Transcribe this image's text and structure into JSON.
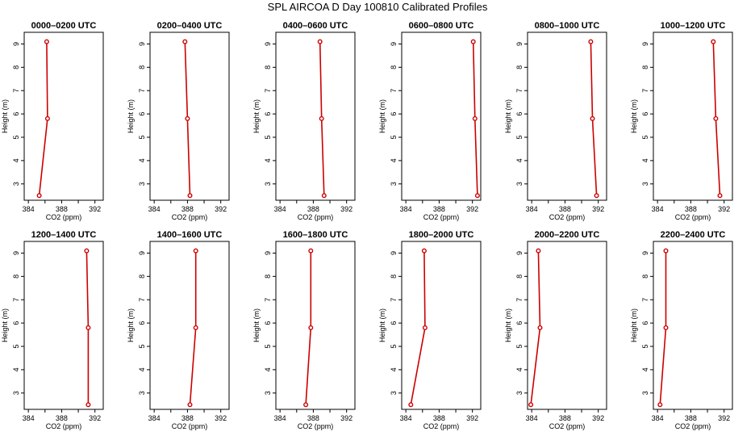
{
  "title": "SPL AIRCOA D  Day 100810  Calibrated Profiles",
  "chart_data": {
    "type": "line",
    "title": "SPL AIRCOA D  Day 100810  Calibrated Profiles",
    "xlabel": "CO2 (ppm)",
    "ylabel": "Height (m)",
    "xlim": [
      383.5,
      393
    ],
    "ylim": [
      2.3,
      9.5
    ],
    "xticks": [
      384,
      388,
      392
    ],
    "xticks_minor": [
      386,
      390
    ],
    "yticks": [
      3,
      4,
      5,
      6,
      7,
      8,
      9
    ],
    "heights": [
      2.5,
      5.8,
      9.1
    ],
    "line_color": "#cc0000",
    "panels": [
      {
        "title": "0000–0200 UTC",
        "co2": [
          385.3,
          386.3,
          386.2
        ]
      },
      {
        "title": "0200–0400 UTC",
        "co2": [
          388.3,
          388.0,
          387.7
        ]
      },
      {
        "title": "0400–0600 UTC",
        "co2": [
          389.3,
          389.0,
          388.8
        ]
      },
      {
        "title": "0600–0800 UTC",
        "co2": [
          392.6,
          392.3,
          392.1
        ]
      },
      {
        "title": "0800–1000 UTC",
        "co2": [
          391.8,
          391.3,
          391.1
        ]
      },
      {
        "title": "1000–1200 UTC",
        "co2": [
          391.5,
          391.0,
          390.7
        ]
      },
      {
        "title": "1200–1400 UTC",
        "co2": [
          391.2,
          391.2,
          391.0
        ]
      },
      {
        "title": "1400–1600 UTC",
        "co2": [
          388.3,
          389.0,
          389.0
        ]
      },
      {
        "title": "1600–1800 UTC",
        "co2": [
          387.1,
          387.7,
          387.7
        ]
      },
      {
        "title": "1800–2000 UTC",
        "co2": [
          384.6,
          386.3,
          386.2
        ]
      },
      {
        "title": "2000–2200 UTC",
        "co2": [
          383.9,
          385.0,
          384.8
        ]
      },
      {
        "title": "2200–2400 UTC",
        "co2": [
          384.3,
          385.0,
          385.0
        ]
      }
    ]
  }
}
